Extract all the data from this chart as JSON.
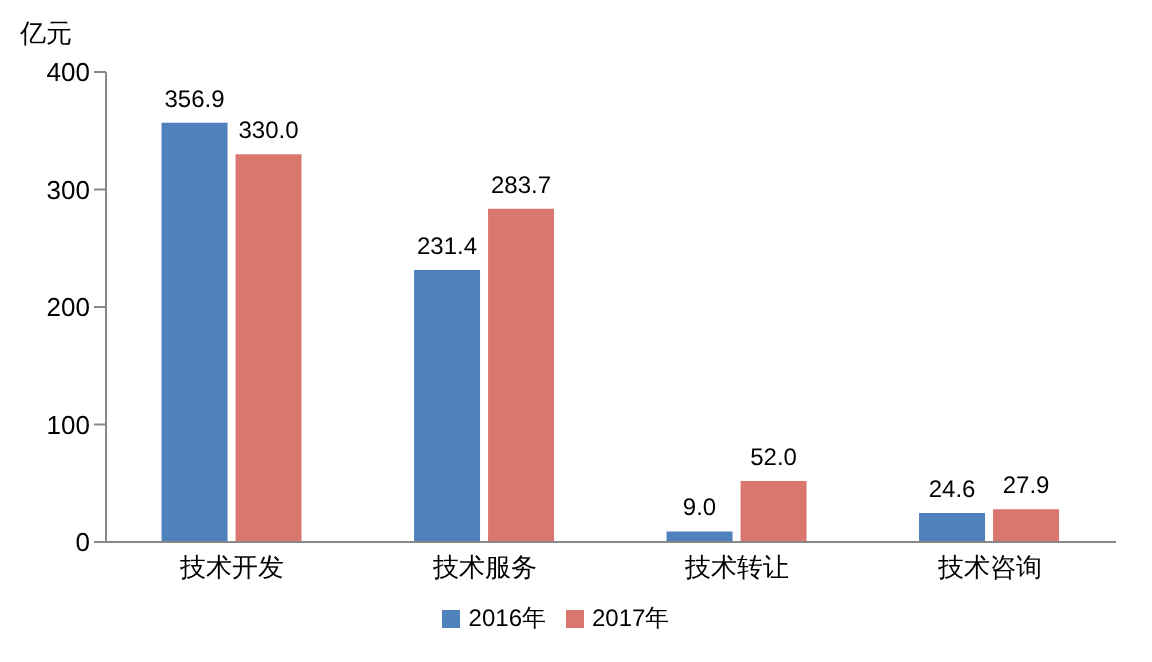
{
  "chart_data": {
    "type": "bar",
    "ylabel": "亿元",
    "categories": [
      "技术开发",
      "技术服务",
      "技术转让",
      "技术咨询"
    ],
    "series": [
      {
        "name": "2016年",
        "color": "#4f81bd",
        "values": [
          356.9,
          231.4,
          9.0,
          24.6
        ],
        "value_labels": [
          "356.9",
          "231.4",
          "9.0",
          "24.6"
        ]
      },
      {
        "name": "2017年",
        "color": "#d9776f",
        "values": [
          330.0,
          283.7,
          52.0,
          27.9
        ],
        "value_labels": [
          "330.0",
          "283.7",
          "52.0",
          "27.9"
        ]
      }
    ],
    "ylim": [
      0,
      400
    ],
    "yticks": [
      0,
      100,
      200,
      300,
      400
    ],
    "grid": false,
    "legend": "bottom"
  }
}
